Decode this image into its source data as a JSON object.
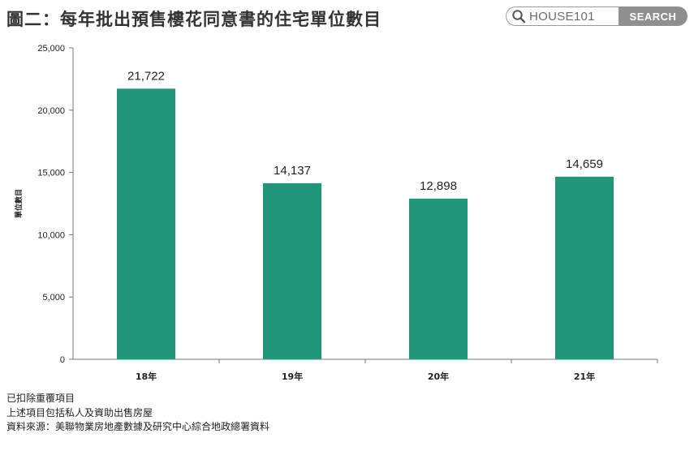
{
  "header": {
    "title": "圖二：每年批出預售樓花同意書的住宅單位數目"
  },
  "search": {
    "brand_text": "HOUSE101",
    "button_label": "SEARCH"
  },
  "chart_data": {
    "type": "bar",
    "categories": [
      "18年",
      "19年",
      "20年",
      "21年"
    ],
    "values": [
      21722,
      14137,
      12898,
      14659
    ],
    "value_labels": [
      "21,722",
      "14,137",
      "12,898",
      "14,659"
    ],
    "ylabel": "單位數目",
    "ylim": [
      0,
      25000
    ],
    "yticks": [
      0,
      5000,
      10000,
      15000,
      20000,
      25000
    ],
    "ytick_labels": [
      "0",
      "5,000",
      "10,000",
      "15,000",
      "20,000",
      "25,000"
    ],
    "bar_color": "#22967a",
    "grid": false,
    "legend": "none"
  },
  "notes": [
    "已扣除重覆項目",
    "上述項目包括私人及資助出售房屋",
    "資料來源：美聯物業房地產數據及研究中心綜合地政總署資料"
  ]
}
